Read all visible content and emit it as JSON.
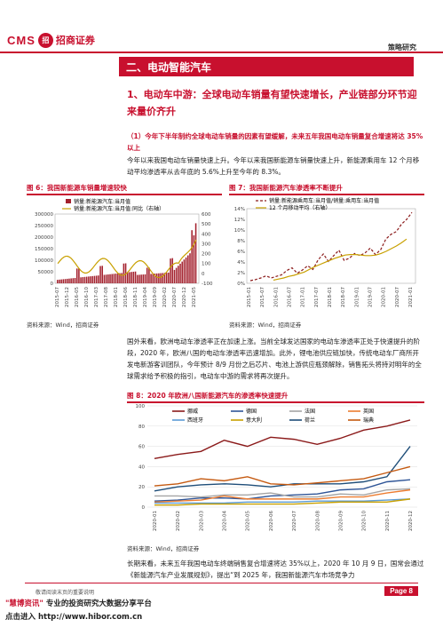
{
  "header": {
    "logo_cms": "CMS",
    "logo_mark": "招",
    "logo_cn": "招商证券",
    "report_type": "策略研究"
  },
  "section": {
    "title": "二、电动智能汽车"
  },
  "subsection": {
    "title": "1、电动车中游：全球电动车销量有望快速增长，产业链部分环节迎来量价齐升"
  },
  "point1": {
    "bold": "（1）今年下半年制约全球电动车销量的因素有望缓解，未来五年我国电动车销量复合增速将达 35%以上",
    "body": "今年以来我国电动车销量快速上升。今年以来我国新能源车销量快速上升，新能源乘用车 12 个月移动平均渗透率从去年底的 5.6%上升至今年的 8.3%。"
  },
  "fig6": {
    "title": "图 6：我国新能源车销量增速较快",
    "source": "资料来源：Wind，招商证券",
    "legend": [
      "销量:新能源汽车:当月值",
      "销量:新能源汽车:当月值:同比（右轴）"
    ],
    "left_ticks": [
      "300000",
      "250000",
      "200000",
      "150000",
      "100000",
      "50000",
      "0"
    ],
    "right_ticks": [
      "600",
      "500",
      "400",
      "300",
      "200",
      "100",
      "0",
      "-100"
    ],
    "x_ticks": [
      "2015-07",
      "2015-12",
      "2016-05",
      "2016-10",
      "2017-03",
      "2017-08",
      "2018-01",
      "2018-06",
      "2018-11",
      "2019-04",
      "2019-09",
      "2020-02",
      "2020-07",
      "2020-12",
      "2021-05"
    ]
  },
  "fig7": {
    "title": "图 7：我国新能源汽车渗透率不断提升",
    "source": "资料来源：Wind，招商证券",
    "legend": [
      "销量:新能源乘用车:当月值/销量:乘用车:当月值",
      "12 个月移动平均（右轴）"
    ],
    "y_ticks": [
      "14%",
      "12%",
      "10%",
      "8%",
      "6%",
      "4%",
      "2%",
      "0%"
    ],
    "x_ticks": [
      "2015-01",
      "2015-07",
      "2016-01",
      "2016-07",
      "2017-01",
      "2017-07",
      "2018-01",
      "2018-07",
      "2019-01",
      "2019-07",
      "2020-01",
      "2020-07",
      "2021-01"
    ]
  },
  "para2": "国外来看，欧洲电动车渗透率正在加速上涨。当前全球发达国家的电动车渗透率正处于快速提升的阶段，2020 年，欧洲八国的电动车渗透率迅速增加。此外，锂电池供应链加快，传统电动车厂商所开发电新游客训团队，今年预计 8/9 月份之后芯片、电池上游供应瓶颈解除，销售拓头将持对明年的全球需求给予积极的指引，电动车中游的需求将再次提升。",
  "fig8": {
    "title": "图 8：2020 年欧洲八国新能源汽车的渗透率快速提升",
    "source": "资料来源：Wind，招商证券",
    "y_ticks": [
      "100",
      "80",
      "60",
      "40",
      "20",
      "0"
    ],
    "x_ticks": [
      "2020-01",
      "2020-02",
      "2020-03",
      "2020-04",
      "2020-05",
      "2020-06",
      "2020-07",
      "2020-08",
      "2020-09",
      "2020-10",
      "2020-11",
      "2020-12"
    ],
    "series_names": [
      "挪威",
      "德国",
      "法国",
      "英国",
      "西班牙",
      "意大利",
      "荷兰",
      "瑞典"
    ],
    "colors": [
      "#8b1a1a",
      "#2f5597",
      "#a5a5a5",
      "#ed7d31",
      "#5b9bd5",
      "#c8a000",
      "#1f4e79",
      "#c55a11"
    ]
  },
  "chart_data": [
    {
      "type": "bar",
      "title": "图 7：我国新能源汽车渗透率不断提升",
      "series": [
        {
          "name": "销量:新能源乘用车:当月值/销量:乘用车:当月值",
          "values": [
            0.5,
            0.7,
            1.0,
            1.4,
            1.0,
            1.3,
            1.6,
            2.4,
            2.9,
            1.9,
            2.5,
            3.3,
            2.6,
            4.4,
            5.5,
            4.1,
            5.2,
            6.2,
            4.3,
            4.7,
            5.6,
            5.2,
            5.7,
            6.6,
            5.4,
            6.3,
            8.3,
            9.2,
            9.7,
            11.1,
            12.0,
            13.3
          ]
        },
        {
          "name": "12 个月移动平均（右轴）",
          "values": [
            0.6,
            0.8,
            1.0,
            1.3,
            1.5,
            1.8,
            2.1,
            2.6,
            3.1,
            3.5,
            3.9,
            4.3,
            4.7,
            5.0,
            5.3,
            5.4,
            5.4,
            5.3,
            5.2,
            5.2,
            5.3,
            5.6,
            6.0,
            6.5,
            7.0,
            7.6,
            8.3
          ]
        }
      ]
    },
    {
      "type": "line",
      "title": "图 8：2020 年欧洲八国新能源汽车的渗透率快速提升",
      "categories": [
        "2020-01",
        "2020-02",
        "2020-03",
        "2020-04",
        "2020-05",
        "2020-06",
        "2020-07",
        "2020-08",
        "2020-09",
        "2020-10",
        "2020-11",
        "2020-12"
      ],
      "series": [
        {
          "name": "挪威",
          "values": [
            48,
            52,
            55,
            66,
            60,
            69,
            67,
            62,
            68,
            76,
            80,
            86
          ]
        },
        {
          "name": "德国",
          "values": [
            6,
            7,
            9,
            9,
            8,
            11,
            12,
            13,
            17,
            18,
            25,
            27
          ]
        },
        {
          "name": "法国",
          "values": [
            11,
            11,
            10,
            12,
            12,
            14,
            10,
            10,
            13,
            12,
            17,
            18
          ]
        },
        {
          "name": "英国",
          "values": [
            5,
            6,
            7,
            11,
            8,
            8,
            8,
            8,
            10,
            10,
            14,
            17
          ]
        },
        {
          "name": "西班牙",
          "values": [
            4,
            4,
            4,
            4,
            5,
            5,
            5,
            6,
            6,
            6,
            7,
            8
          ]
        },
        {
          "name": "意大利",
          "values": [
            2,
            2,
            3,
            3,
            3,
            3,
            3,
            4,
            5,
            5,
            5,
            8
          ]
        },
        {
          "name": "荷兰",
          "values": [
            16,
            20,
            22,
            23,
            22,
            20,
            23,
            23,
            23,
            25,
            30,
            60
          ]
        },
        {
          "name": "瑞典",
          "values": [
            21,
            23,
            28,
            26,
            30,
            23,
            22,
            24,
            26,
            28,
            34,
            40
          ]
        }
      ],
      "ylim": [
        0,
        100
      ]
    }
  ],
  "para3": "长期来看，未来五年我国电动车终端销售复合增速将达 35%以上，2020 年 10 月 9 日，国常会通过《新能源汽车产业发展规划》，提出“到 2025 年，我国新能源汽车市场竞争力",
  "footer": {
    "note": "敬请阅读末页的重要说明",
    "page": "Page 8",
    "hibor_brand": "\"慧博资讯\"",
    "hibor_tag": " 专业的投资研究大数据分享平台",
    "hibor_link": "点击进入 http://www.hibor.com.cn"
  }
}
